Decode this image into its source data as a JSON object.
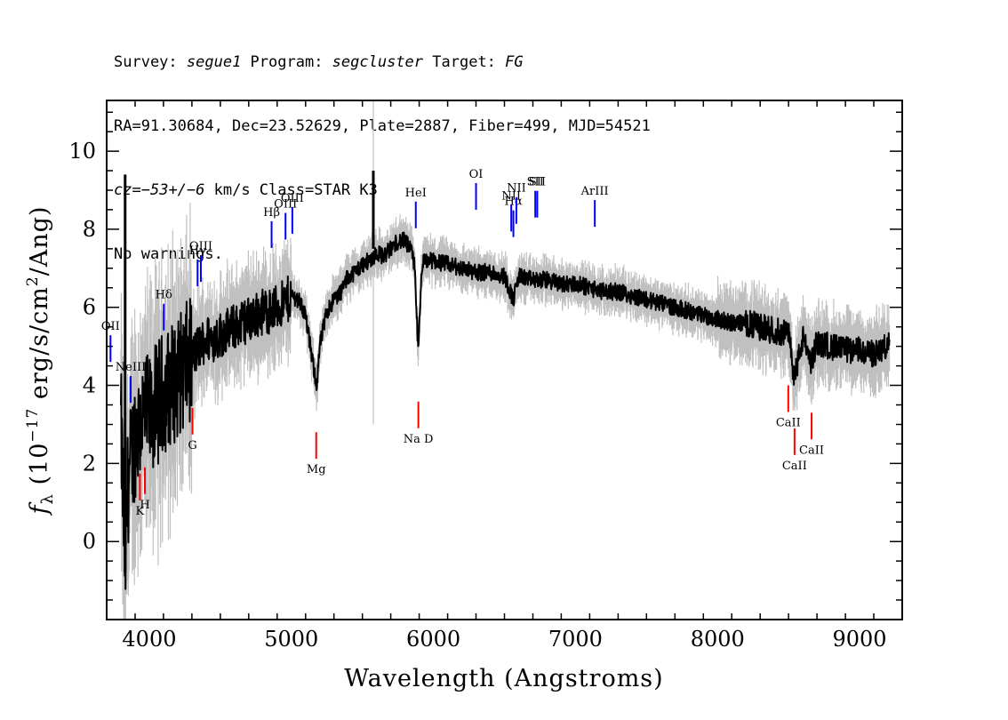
{
  "header": {
    "line1": {
      "p1": "Survey: ",
      "survey": "segue1",
      "p2": " Program: ",
      "program": "segcluster",
      "p3": " Target: ",
      "target": "FG"
    },
    "line2": "RA=91.30684, Dec=23.52629, Plate=2887, Fiber=499, MJD=54521",
    "line3": {
      "cz": "cz",
      "p1": "=",
      "val": "−53+/−6",
      "p2": " km/s Class=STAR K3"
    },
    "line4": "No warnings."
  },
  "colors": {
    "flux": "#000000",
    "error": "#c0c0c0",
    "emission": "#0000ff",
    "absorption": "#ff0000"
  },
  "chart_data": {
    "type": "line",
    "xlabel": "Wavelength (Angstroms)",
    "ylabel": "fλ (10⁻¹⁷ erg/s/cm²/Ang)",
    "xlim": [
      3700,
      9300
    ],
    "ylim": [
      -2,
      11.3
    ],
    "xticks": [
      4000,
      5000,
      6000,
      7000,
      8000,
      9000
    ],
    "yticks": [
      0,
      2,
      4,
      6,
      8,
      10
    ],
    "grid": false,
    "series": [
      {
        "x": [
          3800,
          3830,
          3850,
          3900,
          3950,
          4000,
          4050,
          4100,
          4150,
          4200,
          4250,
          4300,
          4350,
          4400,
          4450,
          4500,
          4550,
          4600,
          4650,
          4700,
          4750,
          4800,
          4850,
          4900,
          4950,
          5000,
          5050,
          5100,
          5150,
          5180,
          5200,
          5250,
          5300,
          5350,
          5400,
          5450,
          5500,
          5550,
          5600,
          5650,
          5700,
          5750,
          5800,
          5850,
          5870,
          5893,
          5920,
          5950,
          6000,
          6100,
          6200,
          6300,
          6400,
          6500,
          6563,
          6600,
          6700,
          6800,
          6900,
          7000,
          7100,
          7200,
          7300,
          7400,
          7500,
          7600,
          7700,
          7800,
          7900,
          8000,
          8100,
          8200,
          8300,
          8400,
          8500,
          8542,
          8600,
          8662,
          8700,
          8800,
          8900,
          9000,
          9100,
          9200
        ],
        "y": [
          3.0,
          -0.6,
          1.5,
          2.7,
          3.2,
          3.2,
          3.5,
          3.8,
          4.0,
          4.2,
          4.5,
          4.7,
          5.0,
          5.2,
          5.2,
          5.3,
          5.4,
          5.5,
          5.6,
          5.7,
          5.8,
          5.9,
          5.9,
          6.0,
          6.1,
          6.3,
          6.2,
          5.8,
          4.6,
          4.0,
          5.0,
          5.9,
          6.2,
          6.4,
          6.8,
          6.9,
          7.1,
          7.2,
          7.4,
          7.3,
          7.5,
          7.7,
          7.7,
          7.4,
          7.0,
          4.8,
          7.1,
          7.2,
          7.2,
          7.1,
          7.0,
          6.9,
          6.9,
          6.8,
          6.2,
          6.8,
          6.7,
          6.7,
          6.6,
          6.6,
          6.5,
          6.4,
          6.4,
          6.3,
          6.2,
          6.1,
          6.0,
          5.9,
          5.8,
          5.7,
          5.6,
          5.6,
          5.5,
          5.4,
          5.3,
          4.2,
          5.2,
          4.6,
          5.1,
          5.0,
          4.9,
          4.9,
          4.8,
          5.0
        ]
      }
    ],
    "emission_lines": [
      {
        "label": "OII",
        "wavelength": 3727
      },
      {
        "label": "NeIII",
        "wavelength": 3869
      },
      {
        "label": "Hδ",
        "wavelength": 4102
      },
      {
        "label": "Hγ",
        "wavelength": 4340
      },
      {
        "label": "OIII",
        "wavelength": 4363
      },
      {
        "label": "Hβ",
        "wavelength": 4861
      },
      {
        "label": "OIII",
        "wavelength": 4959
      },
      {
        "label": "OIII",
        "wavelength": 5007
      },
      {
        "label": "HeI",
        "wavelength": 5876
      },
      {
        "label": "OI",
        "wavelength": 6300
      },
      {
        "label": "NII",
        "wavelength": 6548
      },
      {
        "label": "Hα",
        "wavelength": 6563
      },
      {
        "label": "NII",
        "wavelength": 6584
      },
      {
        "label": "SII",
        "wavelength": 6717
      },
      {
        "label": "SII",
        "wavelength": 6731
      },
      {
        "label": "ArIII",
        "wavelength": 7136
      }
    ],
    "absorption_lines": [
      {
        "label": "K",
        "wavelength": 3934
      },
      {
        "label": "H",
        "wavelength": 3969
      },
      {
        "label": "G",
        "wavelength": 4304
      },
      {
        "label": "Mg",
        "wavelength": 5175
      },
      {
        "label": "Na D",
        "wavelength": 5894
      },
      {
        "label": "CaII",
        "wavelength": 8498
      },
      {
        "label": "CaII",
        "wavelength": 8542
      },
      {
        "label": "CaII",
        "wavelength": 8662
      }
    ]
  }
}
